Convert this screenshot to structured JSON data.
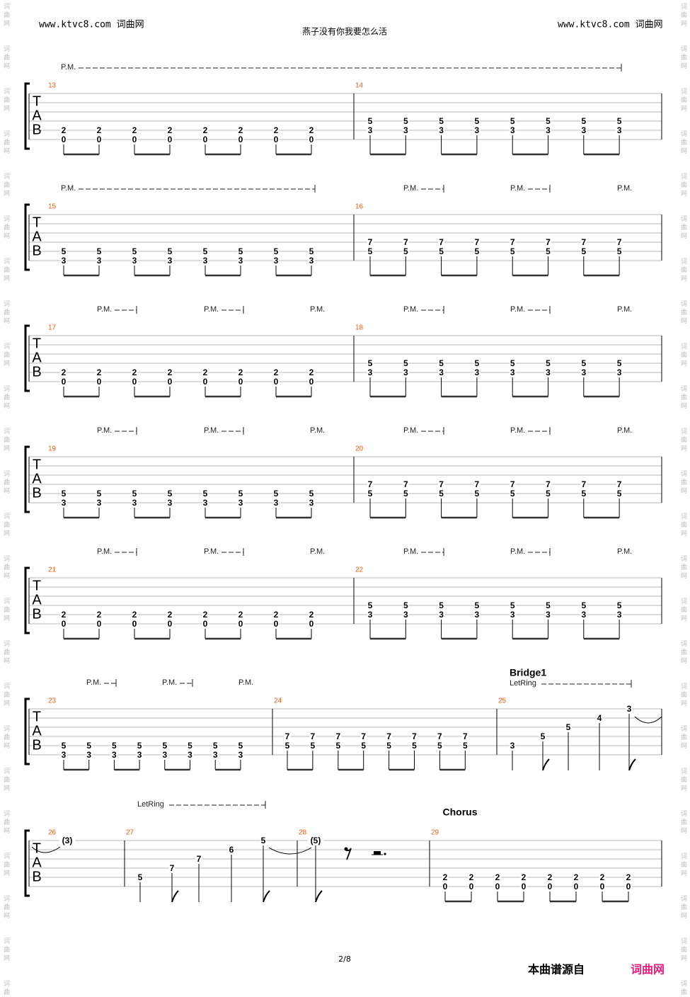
{
  "header": {
    "left": "www.ktvc8.com 词曲网",
    "title": "燕子没有你我要怎么活",
    "right": "www.ktvc8.com 词曲网"
  },
  "side_watermark": "词曲网",
  "tab_clef": [
    "T",
    "A",
    "B"
  ],
  "systems": [
    {
      "pm": [
        "P.M."
      ],
      "measures": [
        {
          "number": 13,
          "notes": [
            [
              null,
              null,
              null,
              null,
              2,
              0
            ],
            [
              null,
              null,
              null,
              null,
              2,
              0
            ],
            [
              null,
              null,
              null,
              null,
              2,
              0
            ],
            [
              null,
              null,
              null,
              null,
              2,
              0
            ],
            [
              null,
              null,
              null,
              null,
              2,
              0
            ],
            [
              null,
              null,
              null,
              null,
              2,
              0
            ],
            [
              null,
              null,
              null,
              null,
              2,
              0
            ],
            [
              null,
              null,
              null,
              null,
              2,
              0
            ]
          ]
        },
        {
          "number": 14,
          "notes": [
            [
              null,
              null,
              null,
              5,
              3,
              null
            ],
            [
              null,
              null,
              null,
              5,
              3,
              null
            ],
            [
              null,
              null,
              null,
              5,
              3,
              null
            ],
            [
              null,
              null,
              null,
              5,
              3,
              null
            ],
            [
              null,
              null,
              null,
              5,
              3,
              null
            ],
            [
              null,
              null,
              null,
              5,
              3,
              null
            ],
            [
              null,
              null,
              null,
              5,
              3,
              null
            ],
            [
              null,
              null,
              null,
              5,
              3,
              null
            ]
          ]
        }
      ]
    },
    {
      "pm": [
        "P.M.",
        "P.M.",
        "P.M.",
        "P.M."
      ],
      "measures": [
        {
          "number": 15,
          "notes": [
            [
              null,
              null,
              null,
              null,
              5,
              3
            ],
            [
              null,
              null,
              null,
              null,
              5,
              3
            ],
            [
              null,
              null,
              null,
              null,
              5,
              3
            ],
            [
              null,
              null,
              null,
              null,
              5,
              3
            ],
            [
              null,
              null,
              null,
              null,
              5,
              3
            ],
            [
              null,
              null,
              null,
              null,
              5,
              3
            ],
            [
              null,
              null,
              null,
              null,
              5,
              3
            ],
            [
              null,
              null,
              null,
              null,
              5,
              3
            ]
          ]
        },
        {
          "number": 16,
          "notes": [
            [
              null,
              null,
              null,
              7,
              5,
              null
            ],
            [
              null,
              null,
              null,
              7,
              5,
              null
            ],
            [
              null,
              null,
              null,
              7,
              5,
              null
            ],
            [
              null,
              null,
              null,
              7,
              5,
              null
            ],
            [
              null,
              null,
              null,
              7,
              5,
              null
            ],
            [
              null,
              null,
              null,
              7,
              5,
              null
            ],
            [
              null,
              null,
              null,
              7,
              5,
              null
            ],
            [
              null,
              null,
              null,
              7,
              5,
              null
            ]
          ]
        }
      ]
    },
    {
      "pm": [
        "P.M.",
        "P.M.",
        "P.M.",
        "P.M.",
        "P.M.",
        "P.M."
      ],
      "measures": [
        {
          "number": 17,
          "notes": [
            [
              null,
              null,
              null,
              null,
              2,
              0
            ],
            [
              null,
              null,
              null,
              null,
              2,
              0
            ],
            [
              null,
              null,
              null,
              null,
              2,
              0
            ],
            [
              null,
              null,
              null,
              null,
              2,
              0
            ],
            [
              null,
              null,
              null,
              null,
              2,
              0
            ],
            [
              null,
              null,
              null,
              null,
              2,
              0
            ],
            [
              null,
              null,
              null,
              null,
              2,
              0
            ],
            [
              null,
              null,
              null,
              null,
              2,
              0
            ]
          ]
        },
        {
          "number": 18,
          "notes": [
            [
              null,
              null,
              null,
              5,
              3,
              null
            ],
            [
              null,
              null,
              null,
              5,
              3,
              null
            ],
            [
              null,
              null,
              null,
              5,
              3,
              null
            ],
            [
              null,
              null,
              null,
              5,
              3,
              null
            ],
            [
              null,
              null,
              null,
              5,
              3,
              null
            ],
            [
              null,
              null,
              null,
              5,
              3,
              null
            ],
            [
              null,
              null,
              null,
              5,
              3,
              null
            ],
            [
              null,
              null,
              null,
              5,
              3,
              null
            ]
          ]
        }
      ]
    },
    {
      "pm": [
        "P.M.",
        "P.M.",
        "P.M.",
        "P.M.",
        "P.M.",
        "P.M."
      ],
      "measures": [
        {
          "number": 19,
          "notes": [
            [
              null,
              null,
              null,
              null,
              5,
              3
            ],
            [
              null,
              null,
              null,
              null,
              5,
              3
            ],
            [
              null,
              null,
              null,
              null,
              5,
              3
            ],
            [
              null,
              null,
              null,
              null,
              5,
              3
            ],
            [
              null,
              null,
              null,
              null,
              5,
              3
            ],
            [
              null,
              null,
              null,
              null,
              5,
              3
            ],
            [
              null,
              null,
              null,
              null,
              5,
              3
            ],
            [
              null,
              null,
              null,
              null,
              5,
              3
            ]
          ]
        },
        {
          "number": 20,
          "notes": [
            [
              null,
              null,
              null,
              7,
              5,
              null
            ],
            [
              null,
              null,
              null,
              7,
              5,
              null
            ],
            [
              null,
              null,
              null,
              7,
              5,
              null
            ],
            [
              null,
              null,
              null,
              7,
              5,
              null
            ],
            [
              null,
              null,
              null,
              7,
              5,
              null
            ],
            [
              null,
              null,
              null,
              7,
              5,
              null
            ],
            [
              null,
              null,
              null,
              7,
              5,
              null
            ],
            [
              null,
              null,
              null,
              7,
              5,
              null
            ]
          ]
        }
      ]
    },
    {
      "pm": [
        "P.M.",
        "P.M.",
        "P.M.",
        "P.M.",
        "P.M.",
        "P.M."
      ],
      "measures": [
        {
          "number": 21,
          "notes": [
            [
              null,
              null,
              null,
              null,
              2,
              0
            ],
            [
              null,
              null,
              null,
              null,
              2,
              0
            ],
            [
              null,
              null,
              null,
              null,
              2,
              0
            ],
            [
              null,
              null,
              null,
              null,
              2,
              0
            ],
            [
              null,
              null,
              null,
              null,
              2,
              0
            ],
            [
              null,
              null,
              null,
              null,
              2,
              0
            ],
            [
              null,
              null,
              null,
              null,
              2,
              0
            ],
            [
              null,
              null,
              null,
              null,
              2,
              0
            ]
          ]
        },
        {
          "number": 22,
          "notes": [
            [
              null,
              null,
              null,
              5,
              3,
              null
            ],
            [
              null,
              null,
              null,
              5,
              3,
              null
            ],
            [
              null,
              null,
              null,
              5,
              3,
              null
            ],
            [
              null,
              null,
              null,
              5,
              3,
              null
            ],
            [
              null,
              null,
              null,
              5,
              3,
              null
            ],
            [
              null,
              null,
              null,
              5,
              3,
              null
            ],
            [
              null,
              null,
              null,
              5,
              3,
              null
            ],
            [
              null,
              null,
              null,
              5,
              3,
              null
            ]
          ]
        }
      ]
    },
    {
      "pm": [
        "P.M.",
        "P.M.",
        "P.M."
      ],
      "section": "Bridge1",
      "let_ring": [
        "LetRing"
      ],
      "measures": [
        {
          "number": 23,
          "notes": [
            [
              null,
              null,
              null,
              null,
              5,
              3
            ],
            [
              null,
              null,
              null,
              null,
              5,
              3
            ],
            [
              null,
              null,
              null,
              null,
              5,
              3
            ],
            [
              null,
              null,
              null,
              null,
              5,
              3
            ],
            [
              null,
              null,
              null,
              null,
              5,
              3
            ],
            [
              null,
              null,
              null,
              null,
              5,
              3
            ],
            [
              null,
              null,
              null,
              null,
              5,
              3
            ],
            [
              null,
              null,
              null,
              null,
              5,
              3
            ]
          ]
        },
        {
          "number": 24,
          "notes": [
            [
              null,
              null,
              null,
              7,
              5,
              null
            ],
            [
              null,
              null,
              null,
              7,
              5,
              null
            ],
            [
              null,
              null,
              null,
              7,
              5,
              null
            ],
            [
              null,
              null,
              null,
              7,
              5,
              null
            ],
            [
              null,
              null,
              null,
              7,
              5,
              null
            ],
            [
              null,
              null,
              null,
              7,
              5,
              null
            ],
            [
              null,
              null,
              null,
              7,
              5,
              null
            ],
            [
              null,
              null,
              null,
              7,
              5,
              null
            ]
          ]
        },
        {
          "number": 25,
          "notes": [
            [
              null,
              null,
              null,
              null,
              3,
              null
            ],
            [
              null,
              null,
              null,
              5,
              null,
              null
            ],
            [
              null,
              null,
              5,
              null,
              null,
              null
            ],
            [
              null,
              4,
              null,
              null,
              null,
              null
            ],
            [
              3,
              null,
              null,
              null,
              null,
              null
            ]
          ]
        }
      ]
    },
    {
      "pm": [],
      "section": "Chorus",
      "let_ring": [
        "LetRing"
      ],
      "measures": [
        {
          "number": 26,
          "notes": [
            [
              "(3)",
              null,
              null,
              null,
              null,
              null
            ]
          ]
        },
        {
          "number": 27,
          "notes": [
            [
              null,
              null,
              null,
              null,
              5,
              null
            ],
            [
              null,
              null,
              null,
              7,
              null,
              null
            ],
            [
              null,
              null,
              7,
              null,
              null,
              null
            ],
            [
              null,
              6,
              null,
              null,
              null,
              null
            ],
            [
              5,
              null,
              null,
              null,
              null,
              null
            ]
          ]
        },
        {
          "number": 28,
          "notes": [
            [
              "(5)",
              null,
              null,
              null,
              null,
              null
            ]
          ]
        },
        {
          "number": 29,
          "notes": [
            [
              null,
              null,
              null,
              null,
              2,
              0
            ],
            [
              null,
              null,
              null,
              null,
              2,
              0
            ],
            [
              null,
              null,
              null,
              null,
              2,
              0
            ],
            [
              null,
              null,
              null,
              null,
              2,
              0
            ],
            [
              null,
              null,
              null,
              null,
              2,
              0
            ],
            [
              null,
              null,
              null,
              null,
              2,
              0
            ],
            [
              null,
              null,
              null,
              null,
              2,
              0
            ],
            [
              null,
              null,
              null,
              null,
              2,
              0
            ]
          ]
        }
      ]
    }
  ],
  "footer": {
    "page": "2/8",
    "source": "本曲谱源自",
    "site": "词曲网"
  }
}
